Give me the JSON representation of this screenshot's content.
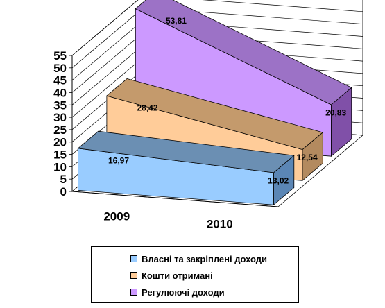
{
  "chart_data": {
    "type": "area",
    "three_d": true,
    "categories": [
      "2009",
      "2010"
    ],
    "y_ticks": [
      "0",
      "5",
      "10",
      "15",
      "20",
      "25",
      "30",
      "35",
      "40",
      "45",
      "50",
      "55"
    ],
    "ylim": [
      0,
      55
    ],
    "grid": true,
    "legend_position": "bottom",
    "series": [
      {
        "name": "Власні та закріплені доходи",
        "values": [
          16.97,
          13.02
        ],
        "labels": [
          "16,97",
          "13,02"
        ],
        "color": "#99CCFF",
        "dark": "#6B8FB3",
        "side": "#5B86B5"
      },
      {
        "name": "Кошти отримані",
        "values": [
          28.42,
          12.54
        ],
        "labels": [
          "28,42",
          "12,54"
        ],
        "color": "#FFCC99",
        "dark": "#C49A6C",
        "side": "#B38A5F"
      },
      {
        "name": "Регулюючі доходи",
        "values": [
          53.81,
          20.83
        ],
        "labels": [
          "53,81",
          "20,83"
        ],
        "color": "#CC99FF",
        "dark": "#9C72C6",
        "side": "#8050A8"
      }
    ]
  }
}
